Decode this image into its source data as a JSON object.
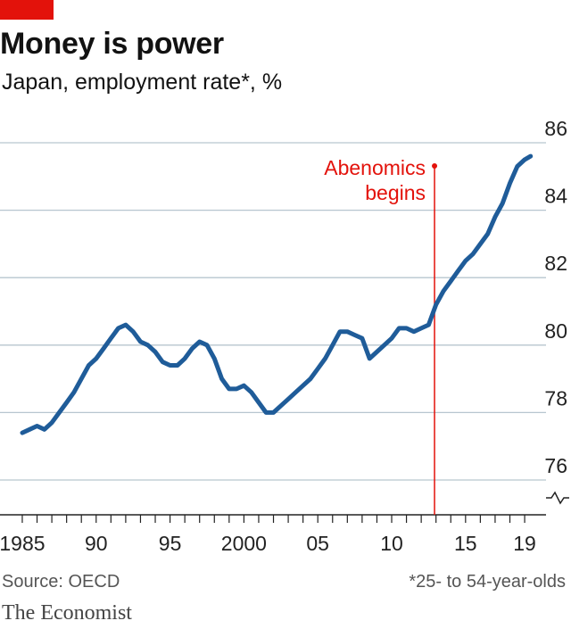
{
  "title": "Money is power",
  "subtitle": "Japan, employment rate*, %",
  "source": "Source: OECD",
  "footnote": "*25- to 54-year-olds",
  "brand": "The Economist",
  "colors": {
    "accent": "#e3120b",
    "line": "#1f5c99",
    "annotation": "#e3120b",
    "grid": "#b7c6cf"
  },
  "chart_data": {
    "type": "line",
    "title": "Money is power",
    "subtitle": "Japan, employment rate*, %",
    "ylabel": "%",
    "ylim": [
      75,
      86
    ],
    "yticks": [
      76,
      78,
      80,
      82,
      84,
      86
    ],
    "axis_break": true,
    "x_range": [
      1984.7,
      2019.6
    ],
    "x_ticks": [
      {
        "value": 1985,
        "label": "1985"
      },
      {
        "value": 1990,
        "label": "90"
      },
      {
        "value": 1995,
        "label": "95"
      },
      {
        "value": 2000,
        "label": "2000"
      },
      {
        "value": 2005,
        "label": "05"
      },
      {
        "value": 2010,
        "label": "10"
      },
      {
        "value": 2015,
        "label": "15"
      },
      {
        "value": 2019,
        "label": "19"
      }
    ],
    "annotation": {
      "label_lines": [
        "Abenomics",
        "begins"
      ],
      "x": 2012.9
    },
    "series": [
      {
        "values": [
          [
            1985.0,
            77.4
          ],
          [
            1985.5,
            77.5
          ],
          [
            1986.0,
            77.6
          ],
          [
            1986.5,
            77.5
          ],
          [
            1987.0,
            77.7
          ],
          [
            1987.5,
            78.0
          ],
          [
            1988.0,
            78.3
          ],
          [
            1988.5,
            78.6
          ],
          [
            1989.0,
            79.0
          ],
          [
            1989.5,
            79.4
          ],
          [
            1990.0,
            79.6
          ],
          [
            1990.5,
            79.9
          ],
          [
            1991.0,
            80.2
          ],
          [
            1991.5,
            80.5
          ],
          [
            1992.0,
            80.6
          ],
          [
            1992.5,
            80.4
          ],
          [
            1993.0,
            80.1
          ],
          [
            1993.5,
            80.0
          ],
          [
            1994.0,
            79.8
          ],
          [
            1994.5,
            79.5
          ],
          [
            1995.0,
            79.4
          ],
          [
            1995.5,
            79.4
          ],
          [
            1996.0,
            79.6
          ],
          [
            1996.5,
            79.9
          ],
          [
            1997.0,
            80.1
          ],
          [
            1997.5,
            80.0
          ],
          [
            1998.0,
            79.6
          ],
          [
            1998.5,
            79.0
          ],
          [
            1999.0,
            78.7
          ],
          [
            1999.5,
            78.7
          ],
          [
            2000.0,
            78.8
          ],
          [
            2000.5,
            78.6
          ],
          [
            2001.0,
            78.3
          ],
          [
            2001.5,
            78.0
          ],
          [
            2002.0,
            78.0
          ],
          [
            2002.5,
            78.2
          ],
          [
            2003.0,
            78.4
          ],
          [
            2003.5,
            78.6
          ],
          [
            2004.0,
            78.8
          ],
          [
            2004.5,
            79.0
          ],
          [
            2005.0,
            79.3
          ],
          [
            2005.5,
            79.6
          ],
          [
            2006.0,
            80.0
          ],
          [
            2006.5,
            80.4
          ],
          [
            2007.0,
            80.4
          ],
          [
            2007.5,
            80.3
          ],
          [
            2008.0,
            80.2
          ],
          [
            2008.5,
            79.6
          ],
          [
            2009.0,
            79.8
          ],
          [
            2009.5,
            80.0
          ],
          [
            2010.0,
            80.2
          ],
          [
            2010.5,
            80.5
          ],
          [
            2011.0,
            80.5
          ],
          [
            2011.5,
            80.4
          ],
          [
            2012.0,
            80.5
          ],
          [
            2012.5,
            80.6
          ],
          [
            2013.0,
            81.2
          ],
          [
            2013.5,
            81.6
          ],
          [
            2014.0,
            81.9
          ],
          [
            2014.5,
            82.2
          ],
          [
            2015.0,
            82.5
          ],
          [
            2015.5,
            82.7
          ],
          [
            2016.0,
            83.0
          ],
          [
            2016.5,
            83.3
          ],
          [
            2017.0,
            83.8
          ],
          [
            2017.5,
            84.2
          ],
          [
            2018.0,
            84.8
          ],
          [
            2018.5,
            85.3
          ],
          [
            2019.0,
            85.5
          ],
          [
            2019.4,
            85.6
          ]
        ]
      }
    ]
  }
}
